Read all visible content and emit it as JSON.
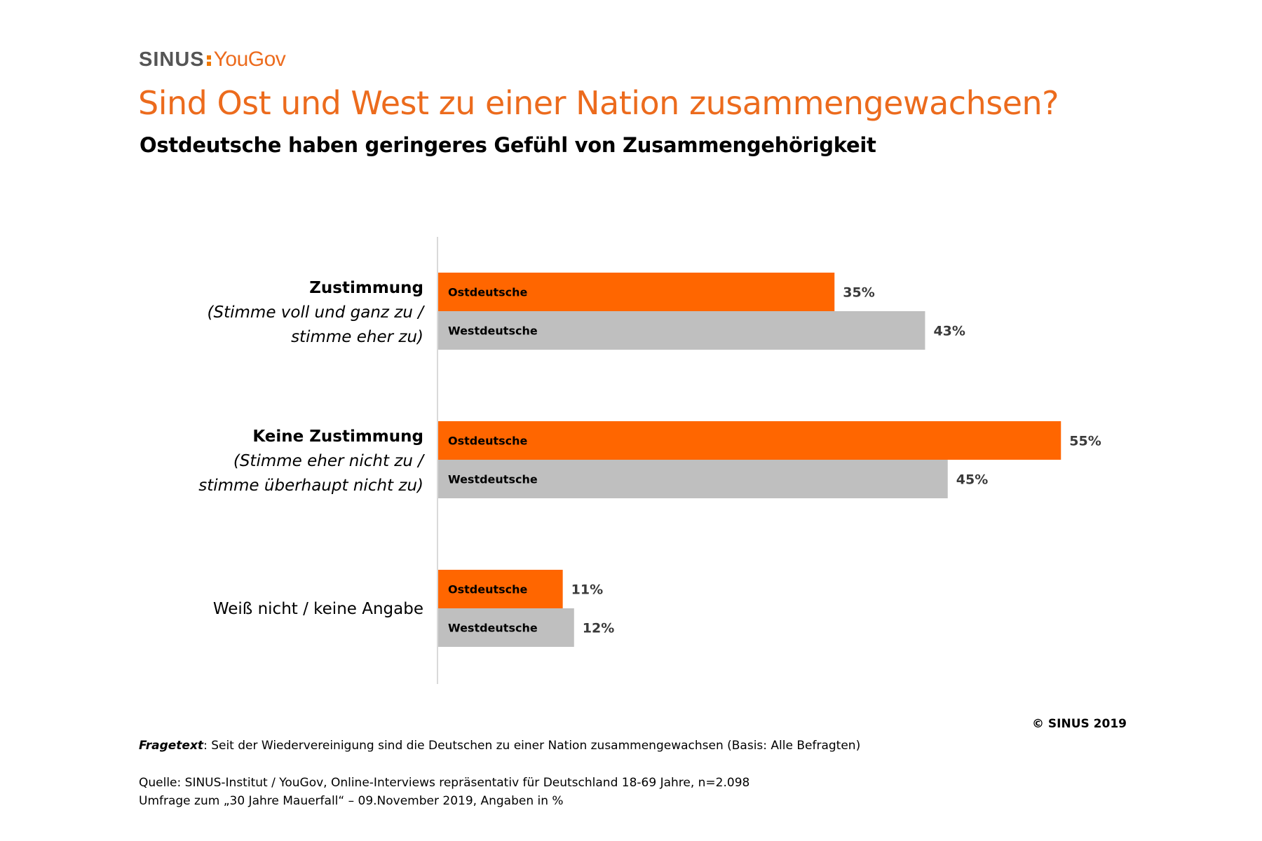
{
  "brand": {
    "sinus": "SINUS",
    "yougov": "YouGov"
  },
  "title": "Sind Ost und West zu einer Nation zusammengewachsen?",
  "subtitle": "Ostdeutsche haben geringeres Gefühl von Zusammengehörigkeit",
  "colors": {
    "accent": "#ec6b1d",
    "ost": "#ff6600",
    "west": "#bfbfbf",
    "axis": "#d9d9d9"
  },
  "chart_data": {
    "type": "bar",
    "orientation": "horizontal",
    "unit": "%",
    "xlim": [
      0,
      60
    ],
    "grid": false,
    "categories": [
      {
        "title": "Zustimmung",
        "subtitle_lines": [
          "(Stimme voll und ganz zu /",
          "stimme eher zu)"
        ]
      },
      {
        "title": "Keine Zustimmung",
        "subtitle_lines": [
          "(Stimme eher nicht zu /",
          "stimme überhaupt nicht zu)"
        ]
      },
      {
        "title": "Weiß nicht / keine Angabe",
        "subtitle_lines": []
      }
    ],
    "series": [
      {
        "name": "Ostdeutsche",
        "values": [
          35,
          55,
          11
        ],
        "labels": [
          "35%",
          "55%",
          "11%"
        ]
      },
      {
        "name": "Westdeutsche",
        "values": [
          43,
          45,
          12
        ],
        "labels": [
          "43%",
          "45%",
          "12%"
        ]
      }
    ]
  },
  "footer": {
    "copyright": "© SINUS 2019",
    "fragetext_lead": "Fragetext",
    "fragetext_body": ": Seit der Wiedervereinigung sind die Deutschen zu einer Nation zusammengewachsen (Basis: Alle Befragten)",
    "quelle_line1": "Quelle: SINUS-Institut / YouGov, Online-Interviews repräsentativ für Deutschland 18-69 Jahre, n=2.098",
    "quelle_line2": "Umfrage zum „30 Jahre Mauerfall“ – 09.November 2019, Angaben in %"
  }
}
